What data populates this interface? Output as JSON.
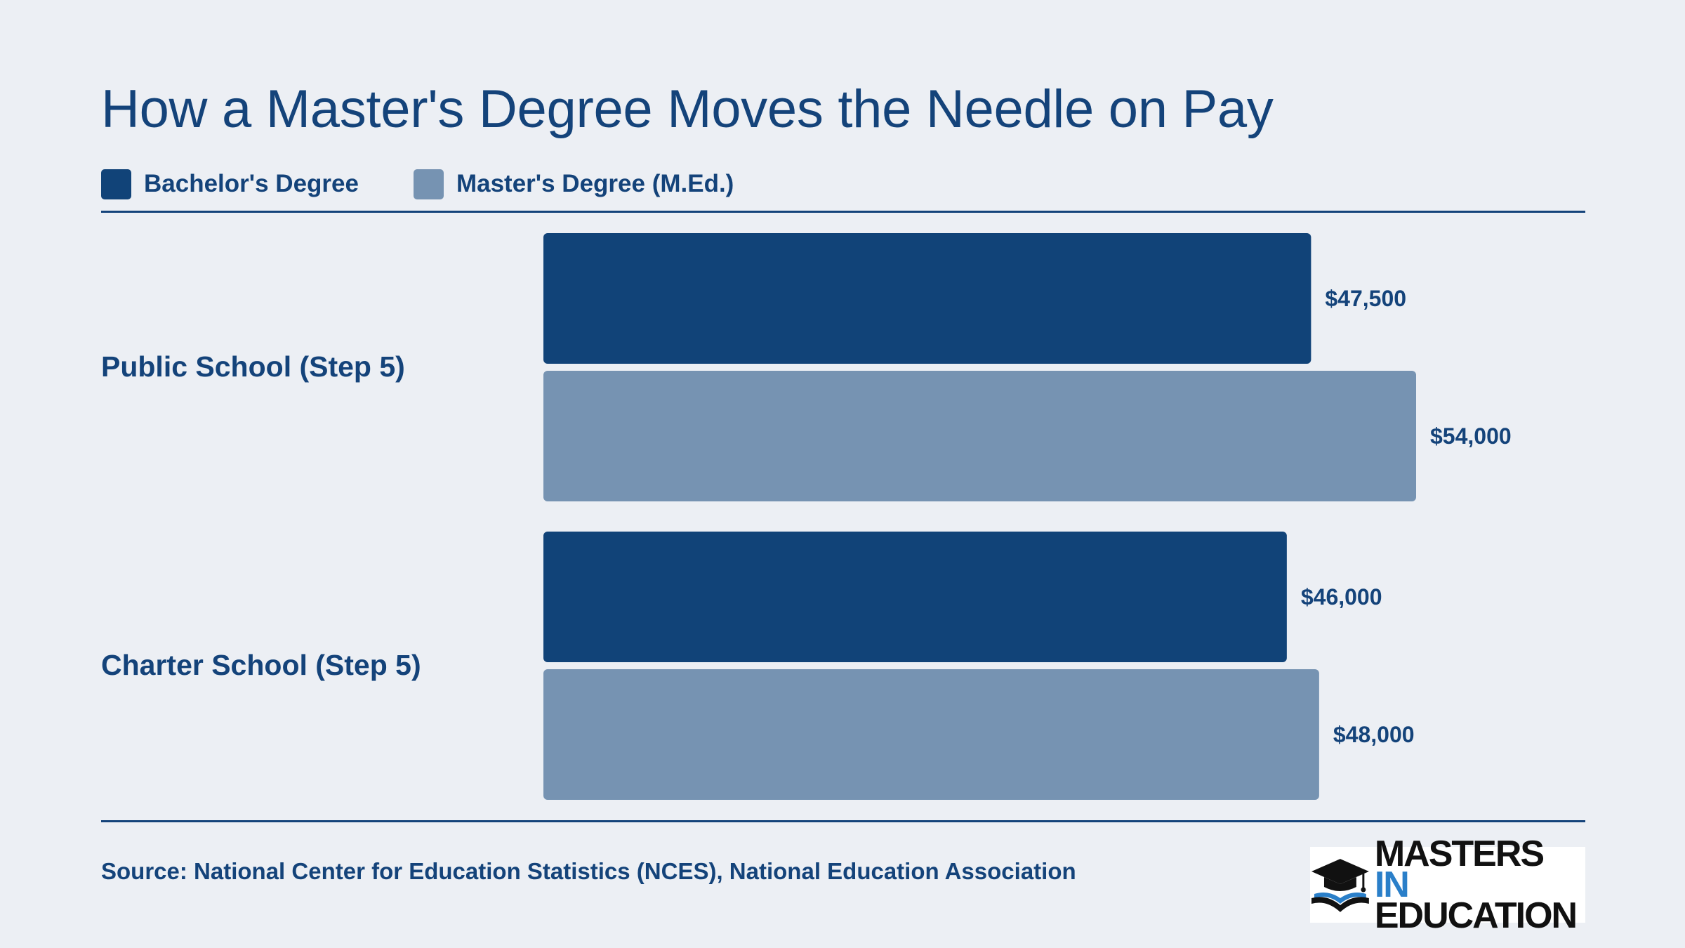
{
  "title": "How a Master's Degree Moves the Needle on Pay",
  "legend": [
    {
      "label": "Bachelor's Degree",
      "color": "#114378"
    },
    {
      "label": "Master's Degree (M.Ed.)",
      "color": "#7693b2"
    }
  ],
  "chart_data": {
    "type": "bar",
    "orientation": "horizontal",
    "categories": [
      "Public School (Step 5)",
      "Charter School (Step 5)"
    ],
    "series": [
      {
        "name": "Bachelor's Degree",
        "values": [
          47500,
          46000
        ],
        "labels": [
          "$47,500",
          "$46,000"
        ],
        "color": "#114378"
      },
      {
        "name": "Master's Degree (M.Ed.)",
        "values": [
          54000,
          48000
        ],
        "labels": [
          "$54,000",
          "$48,000"
        ],
        "color": "#7693b2"
      }
    ],
    "xlabel": "",
    "ylabel": "",
    "grid": false,
    "legend_position": "top-left"
  },
  "source": "Source: National Center for Education Statistics (NCES), National Education Association",
  "logo": {
    "line1": "MASTERS",
    "line1_accent": "IN",
    "line2": "EDUCATION",
    "icon": "graduation-cap-book-icon"
  }
}
